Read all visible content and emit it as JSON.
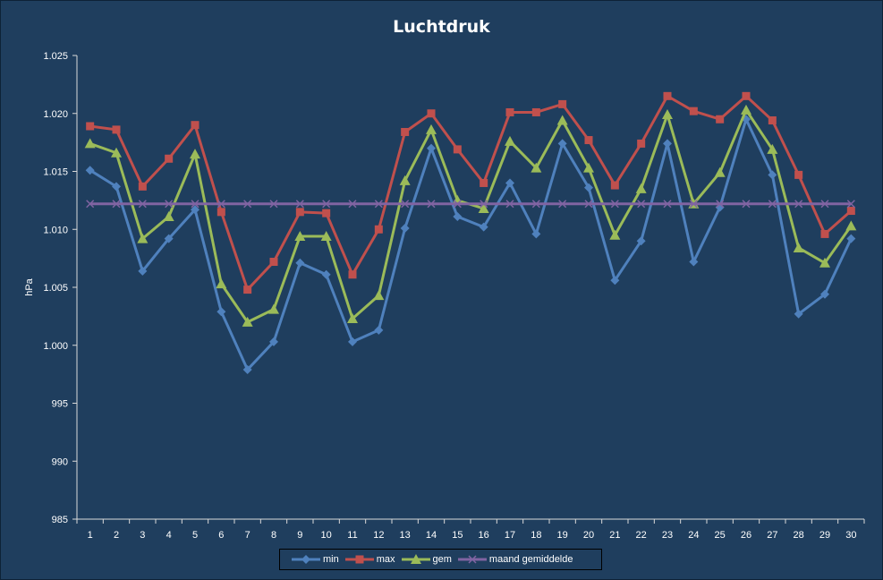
{
  "chart_data": {
    "type": "line",
    "title": "Luchtdruk",
    "xlabel": "",
    "ylabel": "hPa",
    "ylim": [
      985,
      1025
    ],
    "y_ticks": [
      985,
      990,
      995,
      1000,
      1005,
      1010,
      1015,
      1020,
      1025
    ],
    "y_tick_labels": [
      "985",
      "990",
      "995",
      "1.000",
      "1.005",
      "1.010",
      "1.015",
      "1.020",
      "1.025"
    ],
    "x": [
      1,
      2,
      3,
      4,
      5,
      6,
      7,
      8,
      9,
      10,
      11,
      12,
      13,
      14,
      15,
      16,
      17,
      18,
      19,
      20,
      21,
      22,
      23,
      24,
      25,
      26,
      27,
      28,
      29,
      30
    ],
    "grid": false,
    "legend_position": "bottom",
    "series": [
      {
        "name": "min",
        "color": "#4f81bd",
        "marker": "diamond",
        "values": [
          1015.1,
          1013.7,
          1006.4,
          1009.2,
          1011.7,
          1002.9,
          997.9,
          1000.3,
          1007.1,
          1006.1,
          1000.3,
          1001.3,
          1010.1,
          1017.0,
          1011.1,
          1010.2,
          1014.0,
          1009.6,
          1017.4,
          1013.6,
          1005.6,
          1009.0,
          1017.4,
          1007.2,
          1011.9,
          1019.5,
          1014.7,
          1002.7,
          1004.4,
          1009.2
        ]
      },
      {
        "name": "max",
        "color": "#c0504d",
        "marker": "square",
        "values": [
          1018.9,
          1018.6,
          1013.7,
          1016.1,
          1019.0,
          1011.5,
          1004.8,
          1007.2,
          1011.5,
          1011.4,
          1006.1,
          1010.0,
          1018.4,
          1020.0,
          1016.9,
          1014.0,
          1020.1,
          1020.1,
          1020.8,
          1017.7,
          1013.8,
          1017.4,
          1021.5,
          1020.2,
          1019.5,
          1021.5,
          1019.4,
          1014.7,
          1009.6,
          1011.6
        ]
      },
      {
        "name": "gem",
        "color": "#9bbb59",
        "marker": "triangle",
        "values": [
          1017.4,
          1016.6,
          1009.2,
          1011.1,
          1016.5,
          1005.3,
          1002.0,
          1003.1,
          1009.4,
          1009.4,
          1002.3,
          1004.3,
          1014.2,
          1018.6,
          1012.5,
          1011.8,
          1017.6,
          1015.3,
          1019.4,
          1015.3,
          1009.5,
          1013.5,
          1019.9,
          1012.2,
          1014.9,
          1020.3,
          1016.9,
          1008.4,
          1007.1,
          1010.3
        ]
      },
      {
        "name": "maand gemiddelde",
        "color": "#8064a2",
        "marker": "x",
        "values": [
          1012.2,
          1012.2,
          1012.2,
          1012.2,
          1012.2,
          1012.2,
          1012.2,
          1012.2,
          1012.2,
          1012.2,
          1012.2,
          1012.2,
          1012.2,
          1012.2,
          1012.2,
          1012.2,
          1012.2,
          1012.2,
          1012.2,
          1012.2,
          1012.2,
          1012.2,
          1012.2,
          1012.2,
          1012.2,
          1012.2,
          1012.2,
          1012.2,
          1012.2,
          1012.2
        ]
      }
    ]
  }
}
